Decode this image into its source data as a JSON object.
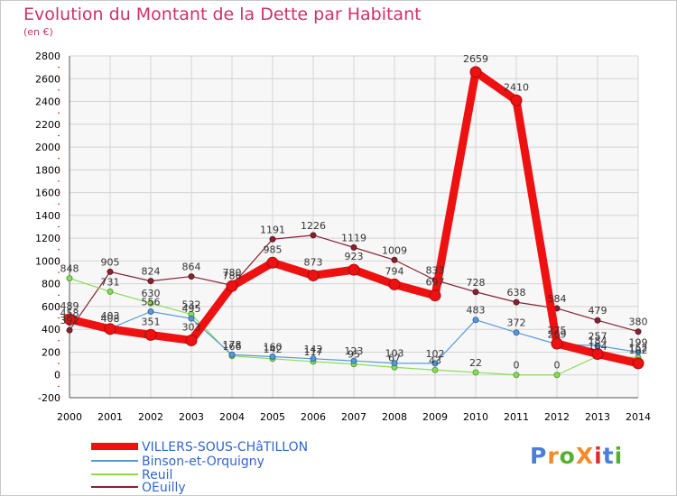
{
  "title": "Evolution du Montant de la Dette par Habitant",
  "subtitle": "(en €)",
  "logo": {
    "text": "ProXiti",
    "colors": [
      "#4a7fd8",
      "#f28c28",
      "#55b030",
      "#f28c28",
      "#d83030",
      "#4a7fd8",
      "#55b030"
    ]
  },
  "chart_data": {
    "type": "line",
    "x": [
      2000,
      2001,
      2002,
      2003,
      2004,
      2005,
      2006,
      2007,
      2008,
      2009,
      2010,
      2011,
      2012,
      2013,
      2014
    ],
    "ylim": [
      -200,
      2800
    ],
    "yticks": [
      -200,
      0,
      200,
      400,
      600,
      800,
      1000,
      1200,
      1400,
      1600,
      1800,
      2000,
      2200,
      2400,
      2600,
      2800
    ],
    "grid": true,
    "legend_position": "bottom-left",
    "series": [
      {
        "name": "VILLERS-SOUS-CHâTILLON",
        "color": "#ee1111",
        "emphasis": true,
        "values": [
          489,
          403,
          351,
          303,
          780,
          985,
          873,
          923,
          794,
          697,
          2659,
          2410,
          275,
          184,
          102
        ],
        "labels": [
          "489",
          "403",
          "351",
          "303",
          "780",
          "985",
          "873",
          "923",
          "794",
          "697",
          "2659",
          "2410",
          "275",
          "184",
          "102"
        ]
      },
      {
        "name": "Binson-et-Orquigny",
        "color": "#5599dd",
        "values": [
          458,
          408,
          556,
          495,
          178,
          160,
          142,
          123,
          103,
          102,
          483,
          372,
          269,
          257,
          199
        ],
        "labels": [
          "458",
          "408",
          "556",
          "495",
          "178",
          "160",
          "142",
          "123",
          "103",
          "102",
          "483",
          "372",
          "269",
          "257",
          "199"
        ]
      },
      {
        "name": "Reuil",
        "color": "#88dd55",
        "values": [
          848,
          731,
          630,
          532,
          166,
          142,
          117,
          95,
          67,
          43,
          22,
          0,
          0,
          164,
          152
        ],
        "labels": [
          "848",
          "731",
          "630",
          "532",
          "166",
          "142",
          "117",
          "95",
          "67",
          "43",
          "22",
          "0",
          "0",
          "164",
          "152"
        ]
      },
      {
        "name": "OEuilly",
        "color": "#882233",
        "values": [
          392,
          905,
          824,
          864,
          786,
          1191,
          1226,
          1119,
          1009,
          833,
          728,
          638,
          584,
          479,
          380
        ],
        "labels": [
          "392",
          "905",
          "824",
          "864",
          "786",
          "1191",
          "1226",
          "1119",
          "1009",
          "833",
          "728",
          "638",
          "584",
          "479",
          "380"
        ]
      }
    ]
  }
}
